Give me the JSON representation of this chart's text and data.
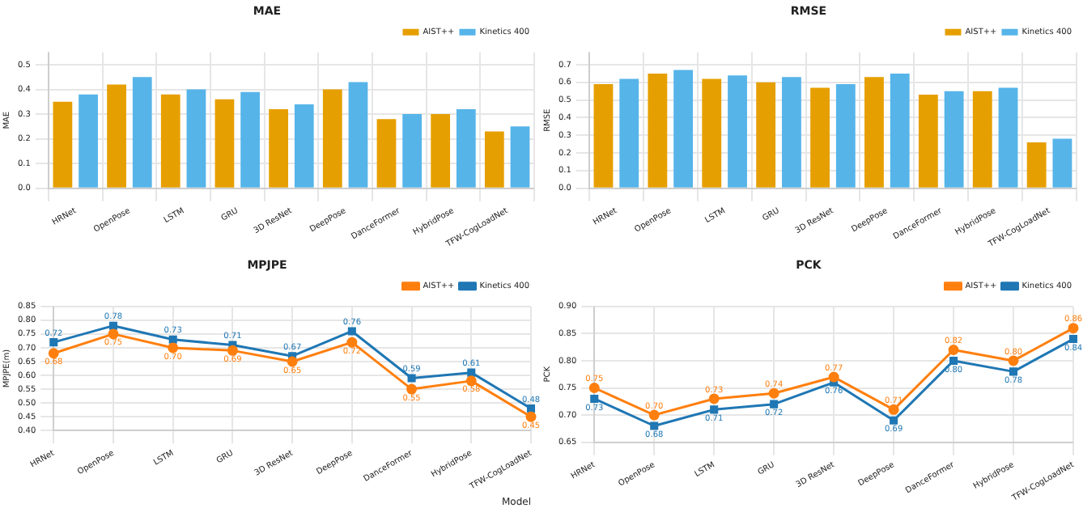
{
  "chart_data": [
    {
      "type": "bar",
      "title": "MAE",
      "ylabel": "MAE",
      "categories": [
        "HRNet",
        "OpenPose",
        "LSTM",
        "GRU",
        "3D ResNet",
        "DeepPose",
        "DanceFormer",
        "HybridPose",
        "TFW-CogLoadNet"
      ],
      "series": [
        {
          "name": "AIST++",
          "color": "#e69f00",
          "values": [
            0.35,
            0.42,
            0.38,
            0.36,
            0.32,
            0.4,
            0.28,
            0.3,
            0.23
          ]
        },
        {
          "name": "Kinetics 400",
          "color": "#56b4e9",
          "values": [
            0.38,
            0.45,
            0.4,
            0.39,
            0.34,
            0.43,
            0.3,
            0.32,
            0.25
          ]
        }
      ],
      "ylim": [
        0,
        0.55
      ],
      "yticks": [
        {
          "value": 0,
          "label": "0.0"
        },
        0.1,
        0.2,
        0.3,
        0.4,
        0.5
      ],
      "grid": true,
      "legend": "top right"
    },
    {
      "type": "bar",
      "title": "RMSE",
      "ylabel": "RMSE",
      "categories": [
        "HRNet",
        "OpenPose",
        "LSTM",
        "GRU",
        "3D ResNet",
        "DeepPose",
        "DanceFormer",
        "HybridPose",
        "TFW-CogLoadNet"
      ],
      "series": [
        {
          "name": "AIST++",
          "color": "#e69f00",
          "values": [
            0.59,
            0.65,
            0.62,
            0.6,
            0.57,
            0.63,
            0.53,
            0.55,
            0.26
          ]
        },
        {
          "name": "Kinetics 400",
          "color": "#56b4e9",
          "values": [
            0.62,
            0.67,
            0.64,
            0.63,
            0.59,
            0.65,
            0.55,
            0.57,
            0.28
          ]
        }
      ],
      "ylim": [
        0,
        0.77
      ],
      "yticks": [
        {
          "value": 0,
          "label": "0.0"
        },
        0.1,
        0.2,
        0.3,
        0.4,
        0.5,
        0.6,
        0.7
      ],
      "grid": true,
      "legend": "top right"
    },
    {
      "type": "line",
      "title": "MPJPE",
      "ylabel": "MPJPE(m)",
      "xlabel": "Model",
      "categories": [
        "HRNet",
        "OpenPose",
        "LSTM",
        "GRU",
        "3D ResNet",
        "DeepPose",
        "DanceFormer",
        "HybridPose",
        "TFW-CogLoadNet"
      ],
      "series": [
        {
          "name": "AIST++",
          "color": "#ff7f0e",
          "marker": "circle",
          "values": [
            0.68,
            0.75,
            0.7,
            0.69,
            0.65,
            0.72,
            0.55,
            0.58,
            0.45
          ],
          "value_labels": [
            "0.68",
            "0.75",
            "0.70",
            "0.69",
            "0.65",
            "0.72",
            "0.55",
            "0.58",
            "0.45"
          ]
        },
        {
          "name": "Kinetics 400",
          "color": "#1f77b4",
          "marker": "square",
          "values": [
            0.72,
            0.78,
            0.73,
            0.71,
            0.67,
            0.76,
            0.59,
            0.61,
            0.48
          ],
          "value_labels": [
            "0.72",
            "0.78",
            "0.73",
            "0.71",
            "0.67",
            "0.76",
            "0.59",
            "0.61",
            "0.48"
          ]
        }
      ],
      "ylim": [
        0.4,
        0.85
      ],
      "yticks": [
        {
          "value": 0.4,
          "label": "0.40"
        },
        0.45,
        {
          "value": 0.5,
          "label": "0.50"
        },
        0.55,
        {
          "value": 0.6,
          "label": "0.60"
        },
        0.65,
        {
          "value": 0.7,
          "label": "0.70"
        },
        0.75,
        {
          "value": 0.8,
          "label": "0.80"
        },
        0.85
      ],
      "grid": true,
      "legend": "top right"
    },
    {
      "type": "line",
      "title": "PCK",
      "ylabel": "PCK",
      "categories": [
        "HRNet",
        "OpenPose",
        "LSTM",
        "GRU",
        "3D ResNet",
        "DeepPose",
        "DanceFormer",
        "HybridPose",
        "TFW-CogLoadNet"
      ],
      "series": [
        {
          "name": "AIST++",
          "color": "#ff7f0e",
          "marker": "circle",
          "values": [
            0.75,
            0.7,
            0.73,
            0.74,
            0.77,
            0.71,
            0.82,
            0.8,
            0.86
          ],
          "value_labels": [
            "0.75",
            "0.70",
            "0.73",
            "0.74",
            "0.77",
            "0.71",
            "0.82",
            "0.80",
            "0.86"
          ]
        },
        {
          "name": "Kinetics 400",
          "color": "#1f77b4",
          "marker": "square",
          "values": [
            0.73,
            0.68,
            0.71,
            0.72,
            0.76,
            0.69,
            0.8,
            0.78,
            0.84
          ],
          "value_labels": [
            "0.73",
            "0.68",
            "0.71",
            "0.72",
            "0.76",
            "0.69",
            "0.80",
            "0.78",
            "0.84"
          ]
        }
      ],
      "ylim": [
        0.65,
        0.9
      ],
      "yticks": [
        {
          "value": 0.65,
          "label": "0.65"
        },
        {
          "value": 0.7,
          "label": "0.70"
        },
        0.75,
        {
          "value": 0.8,
          "label": "0.80"
        },
        0.85,
        {
          "value": 0.9,
          "label": "0.90"
        }
      ],
      "grid": true,
      "legend": "top right"
    }
  ]
}
